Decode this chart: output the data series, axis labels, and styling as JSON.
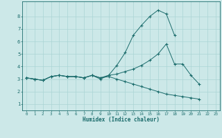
{
  "xlabel": "Humidex (Indice chaleur)",
  "bg_color": "#cce8e8",
  "line_color": "#1a6b6b",
  "grid_color": "#aad4d4",
  "x_data": [
    0,
    1,
    2,
    3,
    4,
    5,
    6,
    7,
    8,
    9,
    10,
    11,
    12,
    13,
    14,
    15,
    16,
    17,
    18,
    19,
    20,
    21,
    22,
    23
  ],
  "line1": [
    3.1,
    3.0,
    2.9,
    3.2,
    3.3,
    3.2,
    3.2,
    3.1,
    3.3,
    3.0,
    3.3,
    4.1,
    5.1,
    6.5,
    7.3,
    8.0,
    8.5,
    8.2,
    6.5,
    null,
    null,
    null,
    null,
    null
  ],
  "line2": [
    3.1,
    3.0,
    2.9,
    3.2,
    3.3,
    3.2,
    3.2,
    3.1,
    3.3,
    3.1,
    3.3,
    3.4,
    3.6,
    3.8,
    4.1,
    4.5,
    5.0,
    5.8,
    4.2,
    4.2,
    3.3,
    2.6,
    null,
    null
  ],
  "line3": [
    3.1,
    3.0,
    2.9,
    3.2,
    3.3,
    3.2,
    3.2,
    3.1,
    3.3,
    3.1,
    3.2,
    3.0,
    2.8,
    2.6,
    2.4,
    2.2,
    2.0,
    1.8,
    1.7,
    1.6,
    1.5,
    1.4,
    null,
    null
  ],
  "xlim": [
    -0.5,
    23.5
  ],
  "ylim": [
    0.5,
    9.2
  ],
  "yticks": [
    1,
    2,
    3,
    4,
    5,
    6,
    7,
    8
  ],
  "xticks": [
    0,
    1,
    2,
    3,
    4,
    5,
    6,
    7,
    8,
    9,
    10,
    11,
    12,
    13,
    14,
    15,
    16,
    17,
    18,
    19,
    20,
    21,
    22,
    23
  ],
  "figsize": [
    3.2,
    2.0
  ],
  "dpi": 100
}
